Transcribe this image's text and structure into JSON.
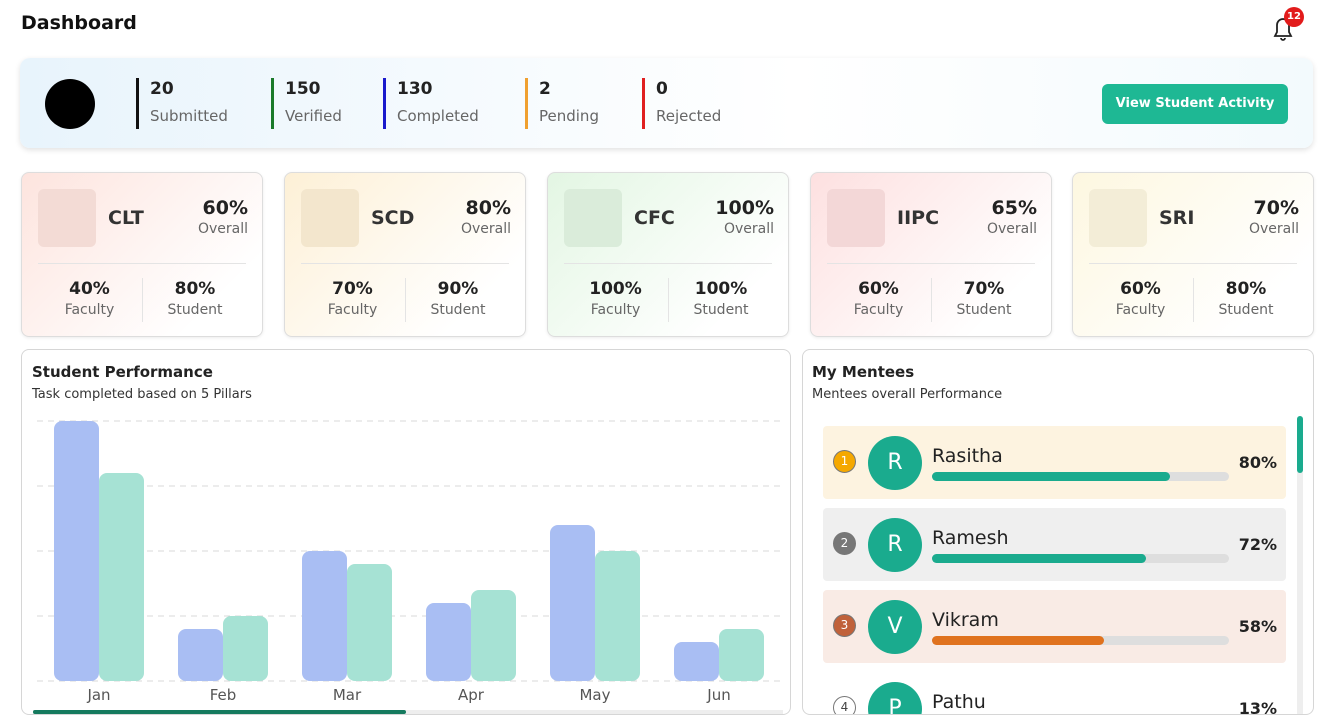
{
  "header": {
    "title": "Dashboard",
    "notification_count": 12
  },
  "stats": {
    "items": [
      {
        "value": 20,
        "label": "Submitted",
        "color": "#111111"
      },
      {
        "value": 150,
        "label": "Verified",
        "color": "#1a7a2a"
      },
      {
        "value": 130,
        "label": "Completed",
        "color": "#1a1acc"
      },
      {
        "value": 2,
        "label": "Pending",
        "color": "#f0a030"
      },
      {
        "value": 0,
        "label": "Rejected",
        "color": "#e02020"
      }
    ],
    "button": "View Student Activity"
  },
  "pillars": [
    {
      "name": "CLT",
      "overall": "60%",
      "overall_label": "Overall",
      "faculty": "40%",
      "faculty_label": "Faculty",
      "student": "80%",
      "student_label": "Student",
      "color": "#fde4de"
    },
    {
      "name": "SCD",
      "overall": "80%",
      "overall_label": "Overall",
      "faculty": "70%",
      "faculty_label": "Faculty",
      "student": "90%",
      "student_label": "Student",
      "color": "#fdf0d6"
    },
    {
      "name": "CFC",
      "overall": "100%",
      "overall_label": "Overall",
      "faculty": "100%",
      "faculty_label": "Faculty",
      "student": "100%",
      "student_label": "Student",
      "color": "#e3f6e3"
    },
    {
      "name": "IIPC",
      "overall": "65%",
      "overall_label": "Overall",
      "faculty": "60%",
      "faculty_label": "Faculty",
      "student": "70%",
      "student_label": "Student",
      "color": "#fde0e0"
    },
    {
      "name": "SRI",
      "overall": "70%",
      "overall_label": "Overall",
      "faculty": "60%",
      "faculty_label": "Faculty",
      "student": "80%",
      "student_label": "Student",
      "color": "#fdf7e0"
    }
  ],
  "chart_data": {
    "type": "bar",
    "title": "Student Performance",
    "subtitle": "Task completed based on 5 Pillars",
    "categories": [
      "Jan",
      "Feb",
      "Mar",
      "Apr",
      "May",
      "Jun"
    ],
    "series": [
      {
        "color": "#a9bef3",
        "values": [
          100,
          20,
          50,
          30,
          60,
          15
        ]
      },
      {
        "color": "#a6e2d4",
        "values": [
          80,
          25,
          45,
          35,
          50,
          20
        ]
      }
    ],
    "ylim": [
      0,
      100
    ],
    "yticks": [
      0,
      25,
      50,
      75,
      100
    ],
    "grid": true
  },
  "mentees": {
    "title": "My Mentees",
    "subtitle": "Mentees overall Performance",
    "items": [
      {
        "rank": 1,
        "initial": "R",
        "name": "Rasitha",
        "value": 80,
        "value_label": "80%",
        "color": "#1aab8e",
        "rank_color": "#f5a800",
        "row_color": "#fdf3e0"
      },
      {
        "rank": 2,
        "initial": "R",
        "name": "Ramesh",
        "value": 72,
        "value_label": "72%",
        "color": "#1aab8e",
        "rank_color": "#777777",
        "row_color": "#efefef"
      },
      {
        "rank": 3,
        "initial": "V",
        "name": "Vikram",
        "value": 58,
        "value_label": "58%",
        "color": "#e0721e",
        "rank_color": "#c0613a",
        "row_color": "#f9ebe5"
      },
      {
        "rank": 4,
        "initial": "P",
        "name": "Pathu",
        "value": 13,
        "value_label": "13%",
        "color": "#1aab8e",
        "rank_color": "#ffffff",
        "row_color": "#ffffff"
      }
    ]
  }
}
